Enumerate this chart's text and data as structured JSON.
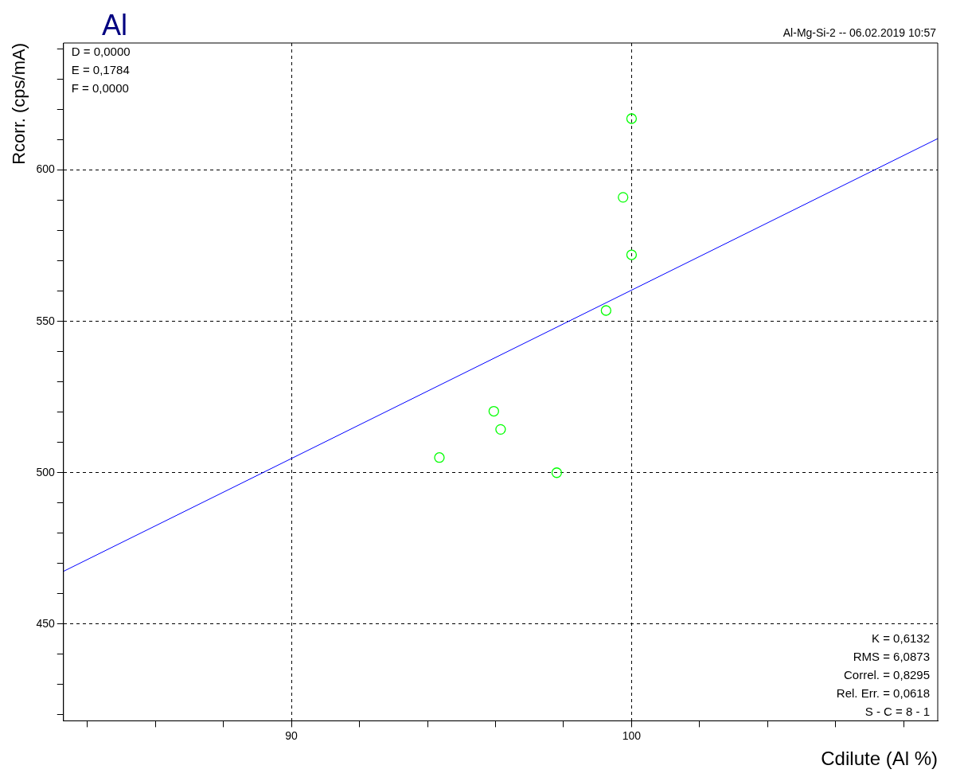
{
  "chart_data": {
    "type": "scatter",
    "title": "Al",
    "subtitle": "Al-Mg-Si-2 -- 06.02.2019 10:57",
    "xlabel": "Cdilute (Al %)",
    "ylabel": "Rcorr. (cps/mA)",
    "annotations": [
      "D = 0,0000\nE = 0,1784\nF = 0,0000",
      "K = 0,6132\nRMS = 6,0873\nCorrel. = 0,8295\nRel. Err. = 0,0618\nS - C = 8 - 1"
    ],
    "series": [
      {
        "color": "#00ff00",
        "marker": "circle",
        "x": [
          100.0,
          99.75,
          100.0,
          99.25,
          95.95,
          96.15,
          94.35,
          97.8
        ],
        "values": [
          617,
          591,
          572,
          553.6,
          520.3,
          514.3,
          505,
          500
        ]
      },
      {
        "type": "line",
        "color": "#0000ff",
        "marker": "none",
        "x": [
          83.3,
          109.0
        ],
        "values": [
          467.4,
          610.4
        ]
      }
    ],
    "xlim": [
      83.3,
      109.0
    ],
    "ylim": [
      418,
      642
    ],
    "xticks": [
      {
        "value": 84,
        "label": null
      },
      {
        "value": 86,
        "label": null
      },
      {
        "value": 88,
        "label": null
      },
      90,
      {
        "value": 92,
        "label": null
      },
      {
        "value": 94,
        "label": null
      },
      {
        "value": 96,
        "label": null
      },
      {
        "value": 98,
        "label": null
      },
      100,
      {
        "value": 102,
        "label": null
      },
      {
        "value": 104,
        "label": null
      },
      {
        "value": 106,
        "label": null
      },
      {
        "value": 108,
        "label": null
      }
    ],
    "yticks": [
      {
        "value": 420,
        "label": null
      },
      {
        "value": 430,
        "label": null
      },
      {
        "value": 440,
        "label": null
      },
      450,
      {
        "value": 460,
        "label": null
      },
      {
        "value": 470,
        "label": null
      },
      {
        "value": 480,
        "label": null
      },
      {
        "value": 490,
        "label": null
      },
      500,
      {
        "value": 510,
        "label": null
      },
      {
        "value": 520,
        "label": null
      },
      {
        "value": 530,
        "label": null
      },
      {
        "value": 540,
        "label": null
      },
      550,
      {
        "value": 560,
        "label": null
      },
      {
        "value": 570,
        "label": null
      },
      {
        "value": 580,
        "label": null
      },
      {
        "value": 590,
        "label": null
      },
      600,
      {
        "value": 610,
        "label": null
      },
      {
        "value": 620,
        "label": null
      },
      {
        "value": 630,
        "label": null
      },
      {
        "value": 640,
        "label": null
      }
    ],
    "grid": true,
    "legend": false
  }
}
